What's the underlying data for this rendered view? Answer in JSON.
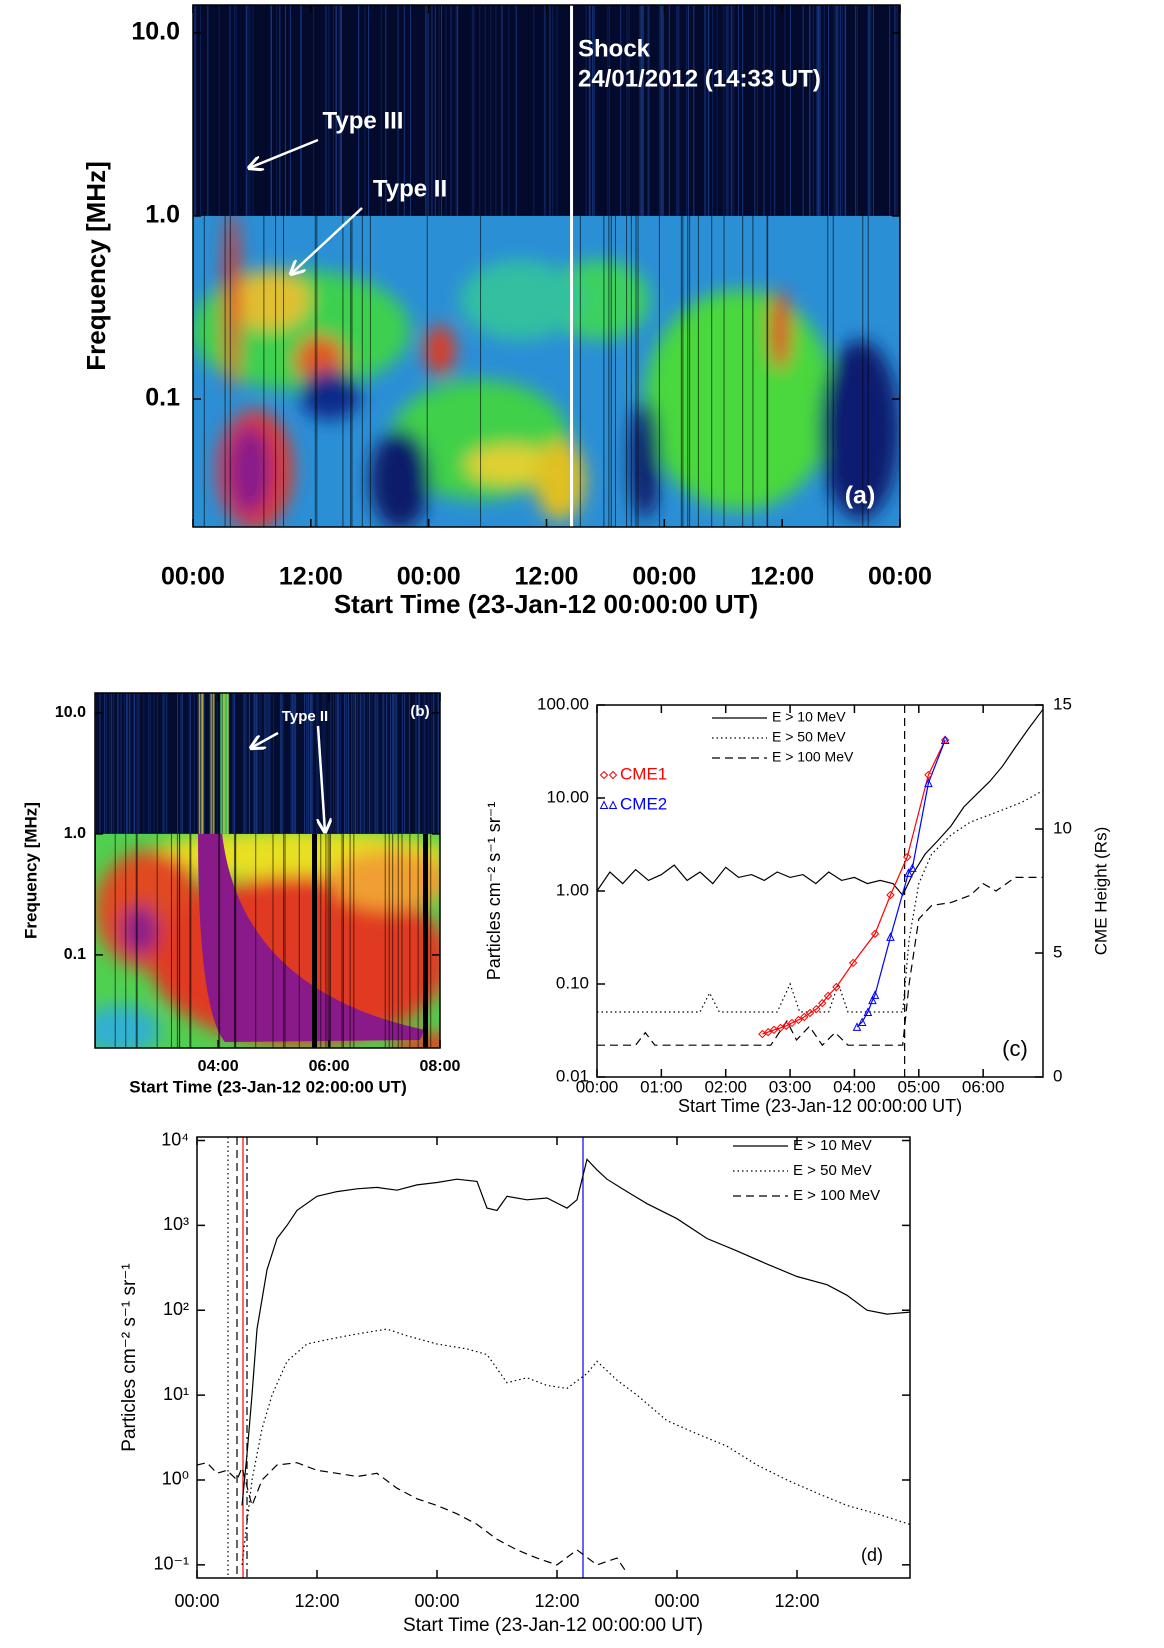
{
  "chart_data": [
    {
      "type": "spectrogram",
      "panel_label": "(a)",
      "xlabel": "Start Time (23-Jan-12 00:00:00 UT)",
      "ylabel": "Frequency [MHz]",
      "log_y": true,
      "xlim": [
        0,
        72
      ],
      "ylim": [
        0.02,
        14.2
      ],
      "xticks": [
        {
          "value": 0,
          "label": "00:00"
        },
        {
          "value": 12,
          "label": "12:00"
        },
        {
          "value": 24,
          "label": "00:00"
        },
        {
          "value": 36,
          "label": "12:00"
        },
        {
          "value": 48,
          "label": "00:00"
        },
        {
          "value": 60,
          "label": "12:00"
        },
        {
          "value": 72,
          "label": "00:00"
        }
      ],
      "yticks": [
        {
          "value": 0.1,
          "label": "0.1"
        },
        {
          "value": 1,
          "label": "1.0"
        },
        {
          "value": 10,
          "label": "10.0"
        }
      ],
      "vlines": [
        {
          "x": 38.55,
          "color": "#ffffff",
          "linestyle": "solid"
        }
      ],
      "annotations": [
        "Type III",
        "Type II",
        "Shock",
        "24/01/2012 (14:33 UT)"
      ]
    },
    {
      "type": "spectrogram",
      "panel_label": "(b)",
      "xlabel": "Start Time (23-Jan-12 02:00:00 UT)",
      "ylabel": "Frequency [MHz]",
      "log_y": true,
      "xlim": [
        1.78,
        8
      ],
      "ylim": [
        0.017,
        14.6
      ],
      "xticks": [
        {
          "value": 4,
          "label": "04:00"
        },
        {
          "value": 6,
          "label": "06:00"
        },
        {
          "value": 8,
          "label": "08:00"
        }
      ],
      "yticks": [
        {
          "value": 0.1,
          "label": "0.1"
        },
        {
          "value": 1,
          "label": "1.0"
        },
        {
          "value": 10,
          "label": "10.0"
        }
      ],
      "vlines": [],
      "annotations": [
        "Type II"
      ]
    },
    {
      "type": "line",
      "panel_label": "(c)",
      "xlabel": "Start Time (23-Jan-12 00:00:00 UT)",
      "ylabel": "Particles cm⁻² s⁻¹ sr⁻¹",
      "y2label": "CME Height (Rs)",
      "log_y": true,
      "xlim": [
        0,
        6.93
      ],
      "ylim": [
        0.01,
        100
      ],
      "y2lim": [
        0,
        15
      ],
      "xticks": [
        {
          "value": 0,
          "label": "00:00"
        },
        {
          "value": 1,
          "label": "01:00"
        },
        {
          "value": 2,
          "label": "02:00"
        },
        {
          "value": 3,
          "label": "03:00"
        },
        {
          "value": 4,
          "label": "04:00"
        },
        {
          "value": 5,
          "label": "05:00"
        },
        {
          "value": 6,
          "label": "06:00"
        }
      ],
      "yticks": [
        {
          "value": 0.01,
          "label": "0.01"
        },
        {
          "value": 0.1,
          "label": "0.10"
        },
        {
          "value": 1,
          "label": "1.00"
        },
        {
          "value": 10,
          "label": "10.00"
        },
        {
          "value": 100,
          "label": "100.00"
        }
      ],
      "y2ticks": [
        0,
        5,
        10,
        15
      ],
      "vlines": [
        {
          "x": 4.78,
          "color": "#000000",
          "linestyle": "dashed"
        }
      ],
      "series": [
        {
          "name": "E > 10 MeV",
          "color": "#000000",
          "linestyle": "solid",
          "x": [
            0,
            0.2,
            0.4,
            0.6,
            0.8,
            1,
            1.2,
            1.4,
            1.6,
            1.8,
            2,
            2.2,
            2.4,
            2.6,
            2.8,
            3,
            3.2,
            3.4,
            3.6,
            3.8,
            4,
            4.2,
            4.4,
            4.6,
            4.75,
            4.9,
            5.1,
            5.3,
            5.5,
            5.7,
            5.9,
            6.1,
            6.3,
            6.5,
            6.7,
            6.93
          ],
          "values": [
            1.0,
            1.6,
            1.2,
            1.7,
            1.3,
            1.5,
            1.9,
            1.3,
            1.6,
            1.2,
            1.8,
            1.4,
            1.5,
            1.3,
            1.6,
            1.4,
            1.5,
            1.2,
            1.6,
            1.3,
            1.4,
            1.2,
            1.3,
            1.2,
            0.9,
            1.5,
            2.5,
            3.5,
            5,
            8,
            11,
            15,
            22,
            35,
            55,
            90
          ]
        },
        {
          "name": "E > 50 MeV",
          "color": "#000000",
          "linestyle": "dotted",
          "x": [
            0,
            1.6,
            1.75,
            1.9,
            2.8,
            3.0,
            3.15,
            3.3,
            3.6,
            3.75,
            3.9,
            4.75,
            4.85,
            5.0,
            5.2,
            5.5,
            5.8,
            6.2,
            6.6,
            6.93
          ],
          "values": [
            0.05,
            0.05,
            0.08,
            0.05,
            0.05,
            0.1,
            0.05,
            0.05,
            0.05,
            0.1,
            0.05,
            0.05,
            0.3,
            1.2,
            2.5,
            4,
            5.5,
            7,
            9,
            12
          ]
        },
        {
          "name": "E > 100 MeV",
          "color": "#000000",
          "linestyle": "dashed",
          "x": [
            0,
            0.6,
            0.75,
            0.9,
            2.7,
            2.95,
            3.1,
            3.3,
            3.5,
            3.7,
            3.9,
            4.75,
            4.85,
            5.0,
            5.2,
            5.5,
            5.8,
            6.0,
            6.2,
            6.5,
            6.93
          ],
          "values": [
            0.022,
            0.022,
            0.03,
            0.022,
            0.022,
            0.04,
            0.025,
            0.035,
            0.022,
            0.03,
            0.022,
            0.022,
            0.1,
            0.5,
            0.7,
            0.75,
            0.9,
            1.2,
            1.0,
            1.4,
            1.4
          ]
        },
        {
          "name": "CME1",
          "color": "#ff0000",
          "linestyle": "solid",
          "marker": "diamond",
          "axis": "y2",
          "x": [
            2.57,
            2.66,
            2.75,
            2.85,
            2.94,
            3.03,
            3.13,
            3.22,
            3.31,
            3.41,
            3.5,
            3.59,
            3.72,
            3.98,
            4.32,
            4.56,
            4.82,
            5.15,
            5.41
          ],
          "values": [
            1.73,
            1.81,
            1.9,
            1.98,
            2.06,
            2.18,
            2.3,
            2.42,
            2.58,
            2.74,
            2.98,
            3.27,
            3.63,
            4.6,
            5.77,
            7.34,
            8.87,
            12.18,
            13.59
          ]
        },
        {
          "name": "CME2",
          "color": "#0000ff",
          "linestyle": "solid",
          "marker": "triangle",
          "axis": "y2",
          "x": [
            4.04,
            4.12,
            4.21,
            4.28,
            4.32,
            4.56,
            4.84,
            4.9,
            5.15,
            5.41
          ],
          "values": [
            2.02,
            2.22,
            2.62,
            3.1,
            3.31,
            5.65,
            8.23,
            8.43,
            11.85,
            13.59
          ]
        }
      ]
    },
    {
      "type": "line",
      "panel_label": "(d)",
      "xlabel": "Start Time (23-Jan-12 00:00:00 UT)",
      "ylabel": "Particles cm⁻² s⁻¹ sr⁻¹",
      "log_y": true,
      "xlim": [
        0,
        71.3
      ],
      "ylim": [
        0.07,
        11000
      ],
      "xticks": [
        {
          "value": 0,
          "label": "00:00"
        },
        {
          "value": 12,
          "label": "12:00"
        },
        {
          "value": 24,
          "label": "00:00"
        },
        {
          "value": 36,
          "label": "12:00"
        },
        {
          "value": 48,
          "label": "00:00"
        },
        {
          "value": 60,
          "label": "12:00"
        }
      ],
      "yticks": [
        {
          "value": 0.1,
          "label": "10⁻¹"
        },
        {
          "value": 1,
          "label": "10⁰"
        },
        {
          "value": 10,
          "label": "10¹"
        },
        {
          "value": 100,
          "label": "10²"
        },
        {
          "value": 1000,
          "label": "10³"
        },
        {
          "value": 10000,
          "label": "10⁴"
        }
      ],
      "vlines": [
        {
          "x": 3.1,
          "color": "#000000",
          "linestyle": "dotted"
        },
        {
          "x": 4.0,
          "color": "#000000",
          "linestyle": "dashed"
        },
        {
          "x": 4.6,
          "color": "#ff0000",
          "linestyle": "solid"
        },
        {
          "x": 5.0,
          "color": "#000000",
          "linestyle": "dashdot"
        },
        {
          "x": 38.6,
          "color": "#0000ff",
          "linestyle": "solid"
        }
      ],
      "series": [
        {
          "name": "E > 10 MeV",
          "color": "#000000",
          "linestyle": "solid",
          "x": [
            4.5,
            5,
            5.5,
            6,
            7,
            8,
            9,
            10,
            12,
            14,
            16,
            18,
            20,
            22,
            24,
            26,
            28,
            29,
            30,
            31,
            33,
            35,
            37,
            38,
            39,
            40,
            41,
            43,
            45,
            48,
            51,
            54,
            57,
            60,
            63,
            65,
            67,
            69,
            71.3
          ],
          "values": [
            0.5,
            2,
            10,
            60,
            300,
            700,
            1000,
            1500,
            2200,
            2500,
            2700,
            2800,
            2600,
            3000,
            3200,
            3500,
            3300,
            1600,
            1500,
            2200,
            2000,
            2100,
            1600,
            2000,
            6000,
            4500,
            3500,
            2500,
            1800,
            1200,
            700,
            500,
            350,
            250,
            200,
            150,
            100,
            90,
            95
          ]
        },
        {
          "name": "E > 50 MeV",
          "color": "#000000",
          "linestyle": "dotted",
          "x": [
            4.5,
            5.5,
            6.5,
            7.5,
            9,
            11,
            13,
            15,
            17,
            19,
            21,
            24,
            27,
            29,
            31,
            33,
            35,
            37,
            39,
            40,
            42,
            44,
            47,
            50,
            53,
            56,
            59,
            62,
            65,
            68,
            71.3
          ],
          "values": [
            0.1,
            1,
            4,
            10,
            25,
            40,
            45,
            50,
            55,
            60,
            50,
            40,
            35,
            30,
            14,
            16,
            13,
            12,
            18,
            25,
            15,
            10,
            5,
            3.5,
            2.5,
            1.5,
            1,
            0.7,
            0.5,
            0.4,
            0.3
          ]
        },
        {
          "name": "E > 100 MeV",
          "color": "#000000",
          "linestyle": "dashed",
          "x": [
            0,
            1,
            2,
            3,
            4,
            4.5,
            5.5,
            6.5,
            8,
            10,
            12,
            14,
            16,
            18,
            20,
            22,
            24,
            26,
            28,
            30,
            32,
            34,
            36,
            38,
            40,
            42,
            43
          ],
          "values": [
            1.5,
            1.6,
            1.2,
            1.3,
            1.0,
            1.4,
            0.5,
            1.0,
            1.5,
            1.6,
            1.3,
            1.2,
            1.1,
            1.2,
            0.8,
            0.6,
            0.5,
            0.4,
            0.3,
            0.2,
            0.15,
            0.12,
            0.1,
            0.15,
            0.1,
            0.12,
            0.08
          ]
        }
      ]
    }
  ]
}
